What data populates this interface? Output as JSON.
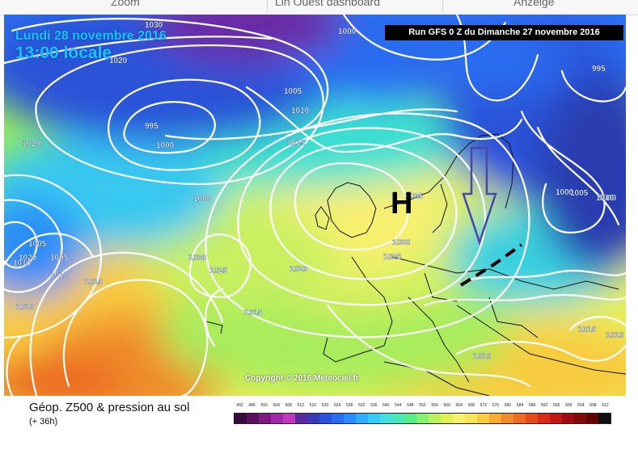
{
  "browser_tabs": [
    "Zoom",
    "Lin Ouest dashboard",
    "Anzeige"
  ],
  "header": {
    "date_line": "Lundi 28 novembre 2016",
    "time_line": "13:00 locale",
    "run_label": "Run GFS 0 Z du Dimanche 27 novembre 2016"
  },
  "map": {
    "high_pressure_label": "H",
    "isobar_labels": [
      "1030",
      "1020",
      "1000",
      "995",
      "1000",
      "1005",
      "1010",
      "1015",
      "1005",
      "1010",
      "1000",
      "1020",
      "1005",
      "1000",
      "995",
      "1010",
      "1015",
      "1010",
      "1030",
      "1025",
      "1035",
      "1030",
      "1025",
      "1020",
      "1015",
      "1010",
      "1005",
      "1000",
      "1015",
      "1010",
      "1020",
      "1010"
    ],
    "arrow_color": "#4a4aa6",
    "front_color": "#000000",
    "copyright": "Copyright © 2016 Meteociel.fr"
  },
  "legend": {
    "title": "Géop. Z500 & pression au sol",
    "subtitle": "(+ 36h)",
    "scale_values": [
      "492",
      "496",
      "500",
      "504",
      "508",
      "512",
      "516",
      "520",
      "524",
      "528",
      "532",
      "536",
      "540",
      "544",
      "548",
      "552",
      "556",
      "560",
      "564",
      "568",
      "572",
      "576",
      "580",
      "584",
      "588",
      "592",
      "596",
      "600",
      "604",
      "608",
      "612"
    ],
    "scale_colors": [
      "#3a0a3a",
      "#5a0f5f",
      "#7d1a82",
      "#a02aa6",
      "#c03ac0",
      "#5a2a9c",
      "#3a3ab8",
      "#2a52d8",
      "#2a6cf0",
      "#2a8cf8",
      "#30aef8",
      "#34ccf4",
      "#40e0e0",
      "#48e8b8",
      "#58ec88",
      "#88f070",
      "#b8f060",
      "#e0f058",
      "#f8f070",
      "#f8e458",
      "#f8cc40",
      "#f8ac34",
      "#f08c2c",
      "#ec6c24",
      "#e44c1c",
      "#d82c18",
      "#c01814",
      "#a00c10",
      "#800808",
      "#600404",
      "#101010"
    ]
  }
}
